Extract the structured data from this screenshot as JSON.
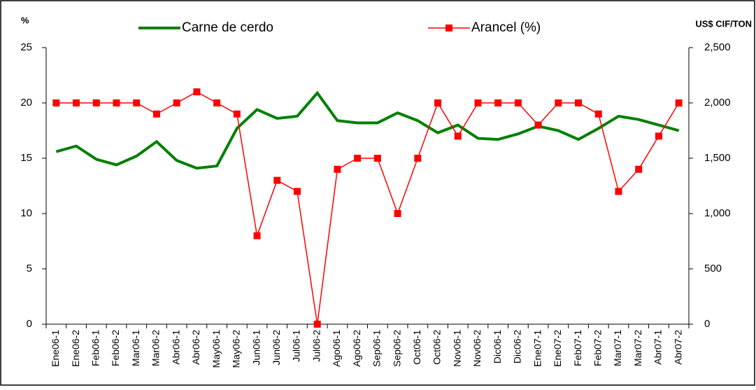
{
  "chart_data": {
    "type": "line",
    "y_label": "%",
    "y2_label": "US$ CIF/TON",
    "categories": [
      "Ene06-1",
      "Ene06-2",
      "Feb06-1",
      "Feb06-2",
      "Mar06-1",
      "Mar06-2",
      "Abr06-1",
      "Abr06-2",
      "May06-1",
      "May06-2",
      "Jun06-1",
      "Jun06-2",
      "Jul06-1",
      "Jul06-2",
      "Ago06-1",
      "Ago06-2",
      "Sep06-1",
      "Sep06-2",
      "Oct06-1",
      "Oct06-2",
      "Nov06-1",
      "Nov06-2",
      "Dic06-1",
      "Dic06-2",
      "Ene07-1",
      "Ene07-2",
      "Feb07-1",
      "Feb07-2",
      "Mar07-1",
      "Mar07-2",
      "Abr07-1",
      "Abr07-2"
    ],
    "series": [
      {
        "name": "Carne de cerdo",
        "color": "#008000",
        "axis": "y2",
        "marker": "none",
        "values": [
          1560,
          1610,
          1490,
          1440,
          1520,
          1650,
          1480,
          1410,
          1430,
          1770,
          1940,
          1860,
          1880,
          2090,
          1840,
          1820,
          1820,
          1910,
          1840,
          1730,
          1800,
          1680,
          1670,
          1720,
          1790,
          1750,
          1670,
          1770,
          1880,
          1850,
          1800,
          1750
        ]
      },
      {
        "name": "Arancel (%)",
        "color": "#ff0000",
        "axis": "y",
        "marker": "square",
        "values": [
          20,
          20,
          20,
          20,
          20,
          19,
          20,
          21,
          20,
          19,
          8,
          13,
          12,
          0,
          14,
          15,
          15,
          10,
          15,
          20,
          17,
          20,
          20,
          20,
          18,
          20,
          20,
          19,
          12,
          14,
          17,
          20
        ]
      }
    ],
    "ylim": [
      0,
      25
    ],
    "yticks": [
      0,
      5,
      10,
      15,
      20,
      25
    ],
    "y2lim": [
      0,
      2500
    ],
    "y2ticks": [
      0,
      500,
      {
        "value": 1000,
        "label": "1,000"
      },
      {
        "value": 1500,
        "label": "1,500"
      },
      {
        "value": 2000,
        "label": "2,000"
      },
      {
        "value": 2500,
        "label": "2,500"
      }
    ],
    "grid": false,
    "legend": "top"
  }
}
